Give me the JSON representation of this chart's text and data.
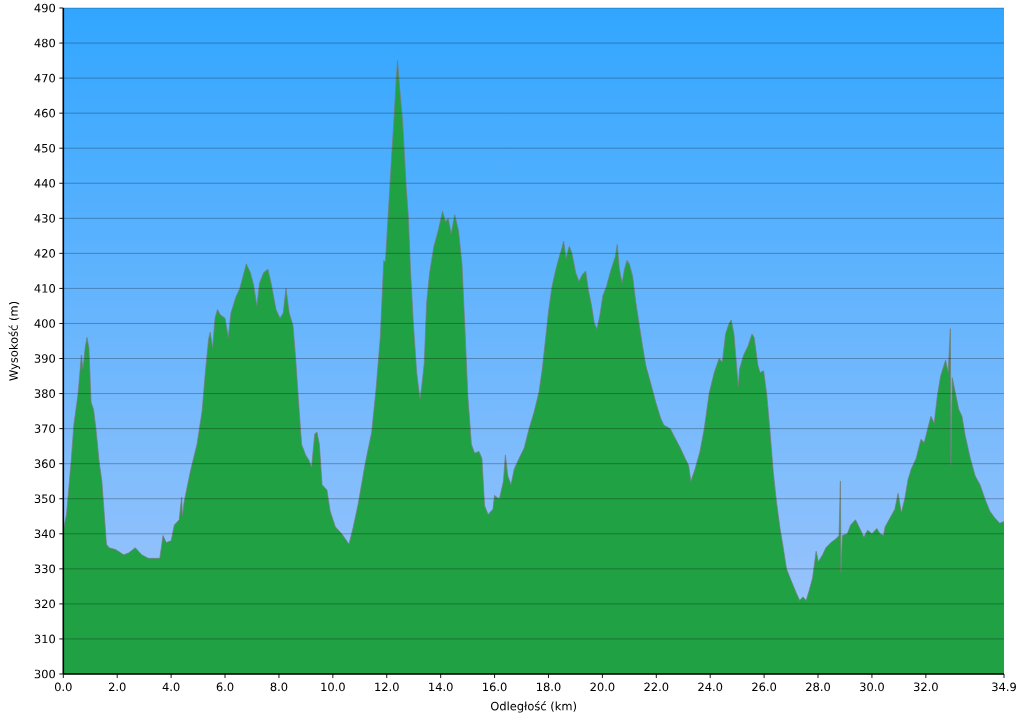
{
  "chart_data": {
    "type": "area",
    "xlabel": "Odległość (km)",
    "ylabel": "Wysokość (m)",
    "color": "#20a144",
    "grid": "y",
    "xlim": [
      0,
      34.9
    ],
    "ylim": [
      300,
      490
    ],
    "xticks": [
      {
        "value": 0,
        "label": "0.0"
      },
      {
        "value": 2,
        "label": "2.0"
      },
      {
        "value": 4,
        "label": "4.0"
      },
      {
        "value": 6,
        "label": "6.0"
      },
      {
        "value": 8,
        "label": "8.0"
      },
      {
        "value": 10,
        "label": "10.0"
      },
      {
        "value": 12,
        "label": "12.0"
      },
      {
        "value": 14,
        "label": "14.0"
      },
      {
        "value": 16,
        "label": "16.0"
      },
      {
        "value": 18,
        "label": "18.0"
      },
      {
        "value": 20,
        "label": "20.0"
      },
      {
        "value": 22,
        "label": "22.0"
      },
      {
        "value": 24,
        "label": "24.0"
      },
      {
        "value": 26,
        "label": "26.0"
      },
      {
        "value": 28,
        "label": "28.0"
      },
      {
        "value": 30,
        "label": "30.0"
      },
      {
        "value": 32,
        "label": "32.0"
      },
      {
        "value": 34.9,
        "label": "34.9"
      }
    ],
    "yticks": [
      300,
      310,
      320,
      330,
      340,
      350,
      360,
      370,
      380,
      390,
      400,
      410,
      420,
      430,
      440,
      450,
      460,
      470,
      480,
      490
    ],
    "x": [
      0,
      0.12,
      0.3,
      0.39,
      0.55,
      0.67,
      0.73,
      0.82,
      0.88,
      0.95,
      1.03,
      1.12,
      1.21,
      1.33,
      1.43,
      1.52,
      1.6,
      1.7,
      1.94,
      2.24,
      2.42,
      2.67,
      2.91,
      3.15,
      3.58,
      3.7,
      3.82,
      4.0,
      4.12,
      4.3,
      4.39,
      4.42,
      4.48,
      4.72,
      4.96,
      5.15,
      5.27,
      5.39,
      5.45,
      5.54,
      5.63,
      5.72,
      5.82,
      6.0,
      6.12,
      6.22,
      6.4,
      6.55,
      6.67,
      6.79,
      6.94,
      7.06,
      7.18,
      7.28,
      7.43,
      7.59,
      7.71,
      7.89,
      8.04,
      8.16,
      8.26,
      8.38,
      8.52,
      8.62,
      8.72,
      8.84,
      8.99,
      9.11,
      9.21,
      9.33,
      9.41,
      9.5,
      9.6,
      9.78,
      9.9,
      10.09,
      10.33,
      10.51,
      10.6,
      10.76,
      10.94,
      11.2,
      11.44,
      11.6,
      11.76,
      11.89,
      11.95,
      12.05,
      12.16,
      12.27,
      12.35,
      12.4,
      12.48,
      12.59,
      12.72,
      12.8,
      12.88,
      12.99,
      13.11,
      13.23,
      13.29,
      13.39,
      13.48,
      13.59,
      13.75,
      13.91,
      14.07,
      14.18,
      14.28,
      14.39,
      14.52,
      14.66,
      14.79,
      14.9,
      15.01,
      15.14,
      15.26,
      15.42,
      15.53,
      15.63,
      15.76,
      15.94,
      16.0,
      16.06,
      16.18,
      16.33,
      16.4,
      16.49,
      16.61,
      16.73,
      16.91,
      17.1,
      17.28,
      17.46,
      17.65,
      17.77,
      17.89,
      18.01,
      18.13,
      18.26,
      18.4,
      18.5,
      18.56,
      18.65,
      18.77,
      18.87,
      19.01,
      19.13,
      19.26,
      19.38,
      19.48,
      19.6,
      19.7,
      19.8,
      19.9,
      20.02,
      20.15,
      20.27,
      20.39,
      20.48,
      20.55,
      20.63,
      20.73,
      20.82,
      20.91,
      21.0,
      21.12,
      21.24,
      21.37,
      21.49,
      21.61,
      21.79,
      21.98,
      22.16,
      22.28,
      22.52,
      22.65,
      22.89,
      23.07,
      23.2,
      23.28,
      23.44,
      23.62,
      23.78,
      23.96,
      24.15,
      24.33,
      24.45,
      24.57,
      24.7,
      24.78,
      24.88,
      24.96,
      25.04,
      25.09,
      25.24,
      25.4,
      25.55,
      25.63,
      25.77,
      25.85,
      25.98,
      26.1,
      26.22,
      26.34,
      26.46,
      26.59,
      26.71,
      26.83,
      27.01,
      27.2,
      27.32,
      27.44,
      27.56,
      27.68,
      27.8,
      27.93,
      28.01,
      28.17,
      28.29,
      28.48,
      28.66,
      28.78,
      28.83,
      28.85,
      28.9,
      29.09,
      29.21,
      29.39,
      29.55,
      29.7,
      29.84,
      30.0,
      30.18,
      30.3,
      30.43,
      30.49,
      30.67,
      30.85,
      30.97,
      31.09,
      31.22,
      31.34,
      31.46,
      31.64,
      31.82,
      31.94,
      32.07,
      32.19,
      32.31,
      32.43,
      32.55,
      32.67,
      32.73,
      32.83,
      32.91,
      32.93,
      32.98,
      33.1,
      33.22,
      33.34,
      33.46,
      33.65,
      33.83,
      34.01,
      34.19,
      34.37,
      34.56,
      34.74,
      34.9
    ],
    "values": [
      341,
      345.5,
      361.5,
      371,
      380,
      391,
      387,
      393.5,
      396,
      393,
      377.5,
      375.5,
      370,
      360.5,
      355,
      345.5,
      337,
      336,
      335.5,
      334,
      334.5,
      336,
      334,
      333,
      333,
      339.5,
      337.5,
      338,
      342.5,
      344,
      350.5,
      345,
      349,
      358,
      365.5,
      375,
      386,
      395.5,
      397.5,
      393,
      401.5,
      404,
      402.5,
      401.5,
      396,
      403,
      407.5,
      410,
      413.5,
      417,
      414.5,
      411,
      405,
      411.5,
      414.5,
      415.5,
      411.5,
      404,
      401.5,
      403,
      410,
      403,
      399.5,
      390,
      378.5,
      365.5,
      362.5,
      361,
      359,
      368.5,
      369,
      365.5,
      354,
      352.5,
      346.5,
      342,
      340,
      338,
      337,
      342,
      348.5,
      360,
      369,
      381,
      396,
      418,
      417.5,
      430.5,
      445,
      458.5,
      469.5,
      475,
      467,
      457.5,
      439,
      430.5,
      415.5,
      399.5,
      386,
      378.5,
      381.5,
      388.5,
      406,
      414.5,
      422,
      426.5,
      432,
      429,
      430,
      425.5,
      431,
      426.5,
      417,
      398.5,
      379,
      365.5,
      363,
      363.5,
      361.5,
      348,
      345.5,
      347,
      351,
      350.5,
      350,
      355,
      362.5,
      356.5,
      354,
      358.5,
      361.5,
      364.5,
      370,
      374.5,
      380.5,
      387,
      395.5,
      404,
      410.5,
      415,
      419,
      421.5,
      423.5,
      418.5,
      422,
      420,
      414.5,
      412,
      414,
      415,
      409.5,
      405,
      400,
      398.5,
      402,
      408,
      410.5,
      414,
      417,
      419,
      422.5,
      415.5,
      411.5,
      415.5,
      418,
      417,
      413.5,
      406,
      399.5,
      393.5,
      388,
      383,
      377.5,
      373,
      371,
      370,
      368,
      364.5,
      361.5,
      359.5,
      355,
      358.5,
      363.5,
      370,
      380,
      386,
      390,
      389,
      397,
      400,
      401,
      397,
      389.5,
      382,
      387,
      391,
      393.5,
      397,
      396,
      388,
      386,
      386.5,
      379.5,
      369,
      357.5,
      349,
      341.5,
      336,
      330,
      326.5,
      323,
      321,
      322,
      321,
      324,
      327.5,
      335,
      332,
      334,
      336,
      337.5,
      338.5,
      339.5,
      355,
      329,
      339.5,
      340,
      342.5,
      344,
      341.5,
      339,
      341,
      340,
      341.5,
      340,
      339.5,
      342,
      344.5,
      347,
      351.5,
      346,
      350,
      355.5,
      358.5,
      361.5,
      367,
      366,
      370,
      373.5,
      371.5,
      379.5,
      385,
      388,
      389.5,
      386,
      398.5,
      359.5,
      384.5,
      380,
      375.5,
      373.5,
      368,
      361.5,
      356.5,
      354,
      350,
      346.5,
      344.5,
      343,
      343.5
    ]
  }
}
